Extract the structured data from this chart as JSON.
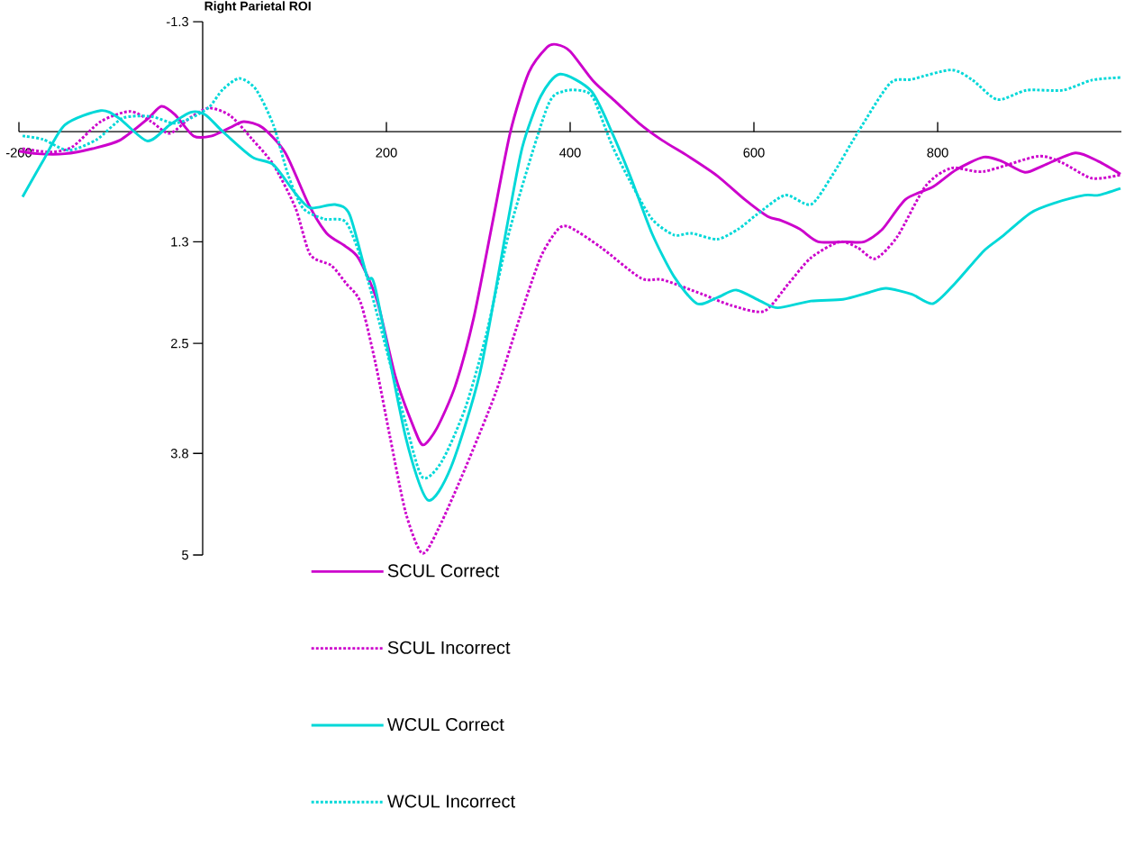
{
  "chart_data": {
    "type": "line",
    "title": "Right Parietal ROI",
    "xlim": [
      -200,
      1000
    ],
    "ylim": [
      5,
      -1.3
    ],
    "xticks": [
      -200,
      200,
      400,
      600,
      800
    ],
    "yticks": [
      -1.3,
      1.3,
      2.5,
      3.8,
      5
    ],
    "legend": "bottom",
    "series": [
      {
        "name": "SCUL Correct",
        "color": "#cc00cc",
        "line_style": "solid",
        "x": [
          -200,
          -180,
          -150,
          -120,
          -90,
          -60,
          -45,
          -30,
          -10,
          10,
          30,
          45,
          65,
          90,
          115,
          135,
          155,
          170,
          190,
          210,
          230,
          240,
          255,
          275,
          295,
          315,
          335,
          355,
          375,
          385,
          400,
          425,
          450,
          475,
          500,
          530,
          560,
          590,
          615,
          630,
          650,
          670,
          700,
          720,
          740,
          765,
          795,
          820,
          850,
          870,
          895,
          915,
          950,
          975,
          999
        ],
        "values": [
          0.23,
          0.26,
          0.26,
          0.2,
          0.1,
          -0.15,
          -0.3,
          -0.2,
          0.05,
          0.05,
          -0.05,
          -0.12,
          -0.05,
          0.25,
          0.85,
          1.2,
          1.35,
          1.5,
          2.0,
          2.9,
          3.5,
          3.7,
          3.5,
          3.0,
          2.2,
          1.1,
          0.0,
          -0.7,
          -1.0,
          -1.03,
          -0.95,
          -0.6,
          -0.35,
          -0.1,
          0.1,
          0.3,
          0.52,
          0.8,
          1.0,
          1.05,
          1.15,
          1.3,
          1.3,
          1.3,
          1.15,
          0.8,
          0.65,
          0.45,
          0.3,
          0.35,
          0.48,
          0.4,
          0.25,
          0.35,
          0.5
        ]
      },
      {
        "name": "SCUL Incorrect",
        "color": "#cc00cc",
        "line_style": "dotted",
        "x": [
          -196,
          -166,
          -142,
          -111,
          -79,
          -56,
          -36,
          -13,
          7,
          30,
          54,
          77,
          101,
          117,
          140,
          156,
          172,
          188,
          204,
          221,
          239,
          257,
          286,
          319,
          345,
          368,
          387,
          400,
          434,
          477,
          501,
          544,
          575,
          611,
          638,
          662,
          693,
          713,
          732,
          756,
          787,
          815,
          850,
          909,
          936,
          968,
          999
        ],
        "values": [
          0.2,
          0.24,
          0.18,
          -0.12,
          -0.24,
          -0.12,
          0.02,
          -0.17,
          -0.28,
          -0.19,
          0.09,
          0.39,
          0.9,
          1.45,
          1.58,
          1.79,
          2.02,
          2.73,
          3.61,
          4.5,
          4.98,
          4.68,
          3.97,
          3.08,
          2.2,
          1.48,
          1.15,
          1.13,
          1.37,
          1.73,
          1.75,
          1.92,
          2.05,
          2.12,
          1.79,
          1.49,
          1.3,
          1.37,
          1.5,
          1.24,
          0.64,
          0.43,
          0.47,
          0.29,
          0.37,
          0.55,
          0.51
        ]
      },
      {
        "name": "WCUL Correct",
        "color": "#00d8d8",
        "line_style": "solid",
        "x": [
          -196,
          -174,
          -150,
          -111,
          -91,
          -60,
          -36,
          -13,
          3,
          22,
          54,
          77,
          101,
          117,
          144,
          160,
          179,
          188,
          221,
          245,
          270,
          302,
          331,
          348,
          368,
          389,
          423,
          446,
          466,
          489,
          513,
          538,
          560,
          581,
          607,
          626,
          662,
          697,
          725,
          744,
          772,
          795,
          819,
          850,
          870,
          901,
          928,
          960,
          975,
          999
        ],
        "values": [
          0.77,
          0.35,
          -0.08,
          -0.25,
          -0.16,
          0.11,
          -0.08,
          -0.23,
          -0.2,
          0.0,
          0.3,
          0.39,
          0.73,
          0.9,
          0.86,
          0.98,
          1.71,
          1.85,
          3.61,
          4.35,
          3.97,
          2.84,
          1.13,
          0.18,
          -0.42,
          -0.68,
          -0.48,
          0.02,
          0.54,
          1.2,
          1.71,
          2.03,
          1.96,
          1.87,
          2.0,
          2.08,
          2.0,
          1.98,
          1.9,
          1.85,
          1.92,
          2.03,
          1.79,
          1.41,
          1.24,
          0.96,
          0.84,
          0.75,
          0.75,
          0.67
        ]
      },
      {
        "name": "WCUL Incorrect",
        "color": "#00d8d8",
        "line_style": "dotted",
        "x": [
          -196,
          -174,
          -146,
          -115,
          -87,
          -56,
          -32,
          -13,
          7,
          22,
          40,
          58,
          77,
          93,
          109,
          132,
          156,
          175,
          191,
          221,
          239,
          260,
          286,
          309,
          335,
          375,
          394,
          415,
          426,
          446,
          466,
          489,
          513,
          532,
          560,
          583,
          603,
          634,
          662,
          685,
          713,
          748,
          772,
          815,
          838,
          865,
          897,
          936,
          968,
          999
        ],
        "values": [
          0.05,
          0.09,
          0.22,
          0.09,
          -0.16,
          -0.18,
          -0.1,
          -0.16,
          -0.29,
          -0.5,
          -0.63,
          -0.5,
          -0.08,
          0.51,
          0.9,
          1.03,
          1.07,
          1.58,
          2.2,
          3.44,
          4.08,
          3.9,
          3.26,
          2.38,
          1.13,
          -0.29,
          -0.48,
          -0.48,
          -0.38,
          0.17,
          0.6,
          1.03,
          1.22,
          1.2,
          1.27,
          1.15,
          0.98,
          0.75,
          0.86,
          0.52,
          0.01,
          -0.57,
          -0.62,
          -0.73,
          -0.61,
          -0.38,
          -0.49,
          -0.49,
          -0.61,
          -0.64
        ]
      }
    ]
  }
}
